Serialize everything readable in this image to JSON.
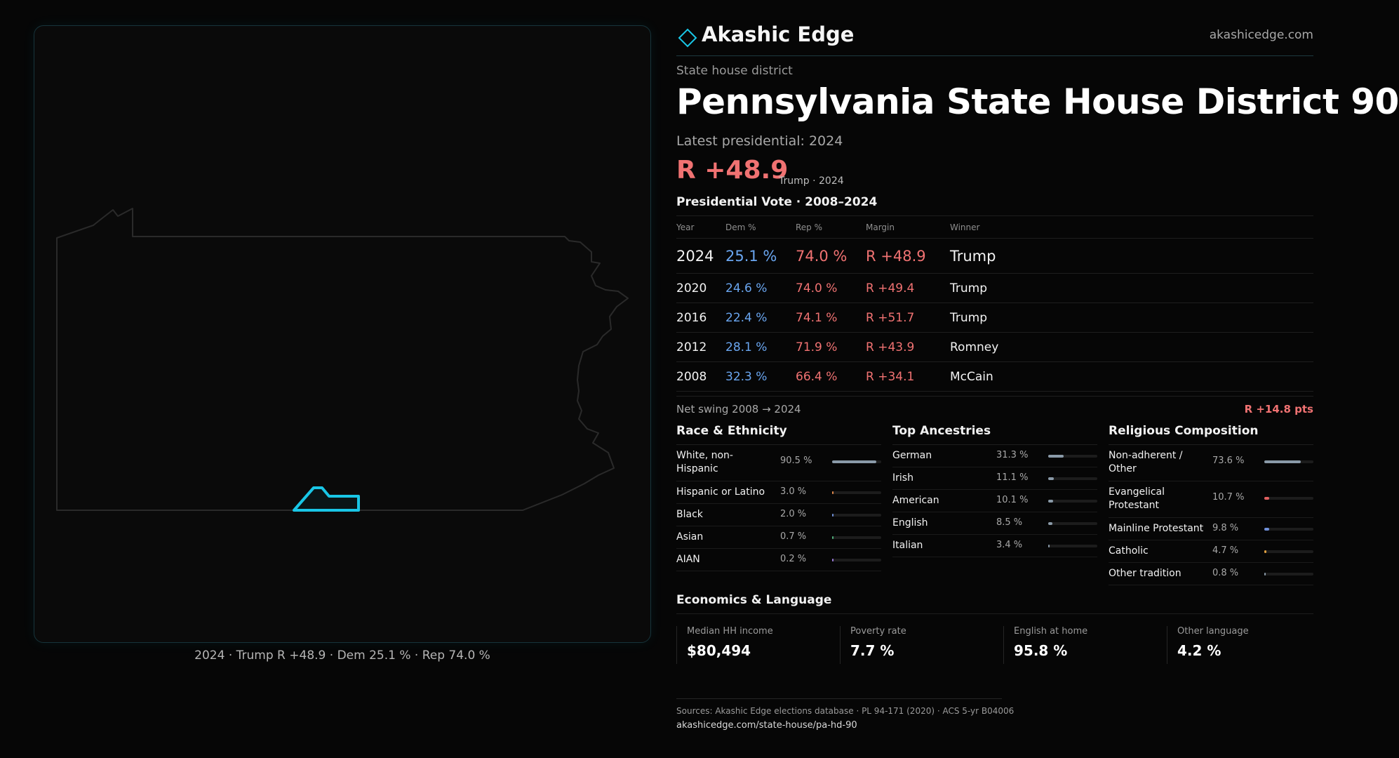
{
  "map": {
    "caption": "2024 · Trump R +48.9 · Dem 25.1 % · Rep 74.0 %",
    "state_outline_color": "#2a2a2a",
    "district_highlight_color": "#19c6e6"
  },
  "brand": {
    "name": "Akashic Edge",
    "url": "akashicedge.com",
    "logo_icon": "diamond-outline-icon",
    "accent": "#19c6e6"
  },
  "district": {
    "kind": "State house district",
    "title": "Pennsylvania State House District 90",
    "latest_label": "Latest presidential: 2024",
    "margin": "R +48.9",
    "margin_note": "Trump · 2024"
  },
  "presidential": {
    "title": "Presidential Vote · 2008–2024",
    "columns": [
      "Year",
      "Dem %",
      "Rep %",
      "Margin",
      "Winner"
    ],
    "rows": [
      {
        "year": "2024",
        "dem": "25.1 %",
        "rep": "74.0 %",
        "margin": "R +48.9",
        "winner": "Trump"
      },
      {
        "year": "2020",
        "dem": "24.6 %",
        "rep": "74.0 %",
        "margin": "R +49.4",
        "winner": "Trump"
      },
      {
        "year": "2016",
        "dem": "22.4 %",
        "rep": "74.1 %",
        "margin": "R +51.7",
        "winner": "Trump"
      },
      {
        "year": "2012",
        "dem": "28.1 %",
        "rep": "71.9 %",
        "margin": "R +43.9",
        "winner": "Romney"
      },
      {
        "year": "2008",
        "dem": "32.3 %",
        "rep": "66.4 %",
        "margin": "R +34.1",
        "winner": "McCain"
      }
    ],
    "dem_color": "#6aa6f0",
    "rep_color": "#f07272"
  },
  "swing": {
    "label": "Net swing 2008 → 2024",
    "value": "R +14.8 pts"
  },
  "race": {
    "title": "Race & Ethnicity",
    "items": [
      {
        "label": "White, non-Hispanic",
        "value": "90.5 %",
        "share": 90.5,
        "color": "#8a9aa8"
      },
      {
        "label": "Hispanic or Latino",
        "value": "3.0 %",
        "share": 3.0,
        "color": "#e0884a"
      },
      {
        "label": "Black",
        "value": "2.0 %",
        "share": 2.0,
        "color": "#6f8fd8"
      },
      {
        "label": "Asian",
        "value": "0.7 %",
        "share": 0.7,
        "color": "#4fae7a"
      },
      {
        "label": "AIAN",
        "value": "0.2 %",
        "share": 0.2,
        "color": "#9a7ad8"
      }
    ]
  },
  "ancestry": {
    "title": "Top Ancestries",
    "items": [
      {
        "label": "German",
        "value": "31.3 %",
        "share": 31.3,
        "color": "#8a9aa8"
      },
      {
        "label": "Irish",
        "value": "11.1 %",
        "share": 11.1,
        "color": "#8a9aa8"
      },
      {
        "label": "American",
        "value": "10.1 %",
        "share": 10.1,
        "color": "#8a9aa8"
      },
      {
        "label": "English",
        "value": "8.5 %",
        "share": 8.5,
        "color": "#8a9aa8"
      },
      {
        "label": "Italian",
        "value": "3.4 %",
        "share": 3.4,
        "color": "#8a9aa8"
      }
    ]
  },
  "religion": {
    "title": "Religious Composition",
    "items": [
      {
        "label": "Non-adherent / Other",
        "value": "73.6 %",
        "share": 73.6,
        "color": "#8a9aa8"
      },
      {
        "label": "Evangelical Protestant",
        "value": "10.7 %",
        "share": 10.7,
        "color": "#e06060"
      },
      {
        "label": "Mainline Protestant",
        "value": "9.8 %",
        "share": 9.8,
        "color": "#6f8fd8"
      },
      {
        "label": "Catholic",
        "value": "4.7 %",
        "share": 4.7,
        "color": "#e0a040"
      },
      {
        "label": "Other tradition",
        "value": "0.8 %",
        "share": 0.8,
        "color": "#8a9aa8"
      }
    ]
  },
  "economics": {
    "title": "Economics & Language",
    "cards": [
      {
        "label": "Median HH income",
        "value": "$80,494"
      },
      {
        "label": "Poverty rate",
        "value": "7.7 %"
      },
      {
        "label": "English at home",
        "value": "95.8 %"
      },
      {
        "label": "Other language",
        "value": "4.2 %"
      }
    ]
  },
  "footer": {
    "sources": "Sources: Akashic Edge elections database · PL 94-171 (2020) · ACS 5-yr B04006",
    "permalink": "akashicedge.com/state-house/pa-hd-90"
  }
}
